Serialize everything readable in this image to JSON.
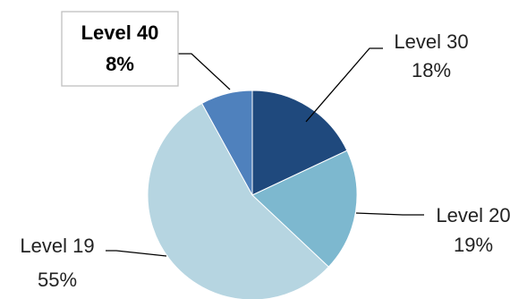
{
  "chart_data": {
    "type": "pie",
    "title": "",
    "categories": [
      "Level 30",
      "Level 20",
      "Level 19",
      "Level 40"
    ],
    "values": [
      18,
      19,
      55,
      8
    ],
    "value_labels": [
      "18%",
      "19%",
      "55%",
      "8%"
    ],
    "unit": "%",
    "start_angle_deg": 0,
    "direction": "clockwise",
    "colors": [
      "#1F497D",
      "#7DB8CF",
      "#B6D5E1",
      "#4F81BD"
    ],
    "highlighted_category": "Level 40",
    "legend": "none",
    "label_placement": "outside-with-leader-lines"
  }
}
